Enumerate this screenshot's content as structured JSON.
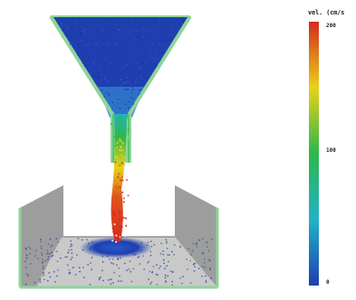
{
  "simulation": {
    "scene": "granular-flow-funnel",
    "colors": {
      "low": "#1f3fb0",
      "mid_low": "#22b2c8",
      "mid": "#2cb84a",
      "mid_high": "#e8d21a",
      "high": "#d62a1e",
      "hopper_edge": "#8fd49a",
      "wall": "#9a9a9a",
      "floor": "#c8c8c8"
    }
  },
  "colorbar": {
    "title": "vel. (cm/s",
    "max_label": "200",
    "mid_label": "100",
    "min_label": "0",
    "colors": [
      "#d62a1e",
      "#e8d21a",
      "#2cb84a",
      "#22b2c8",
      "#1f3fb0"
    ]
  }
}
